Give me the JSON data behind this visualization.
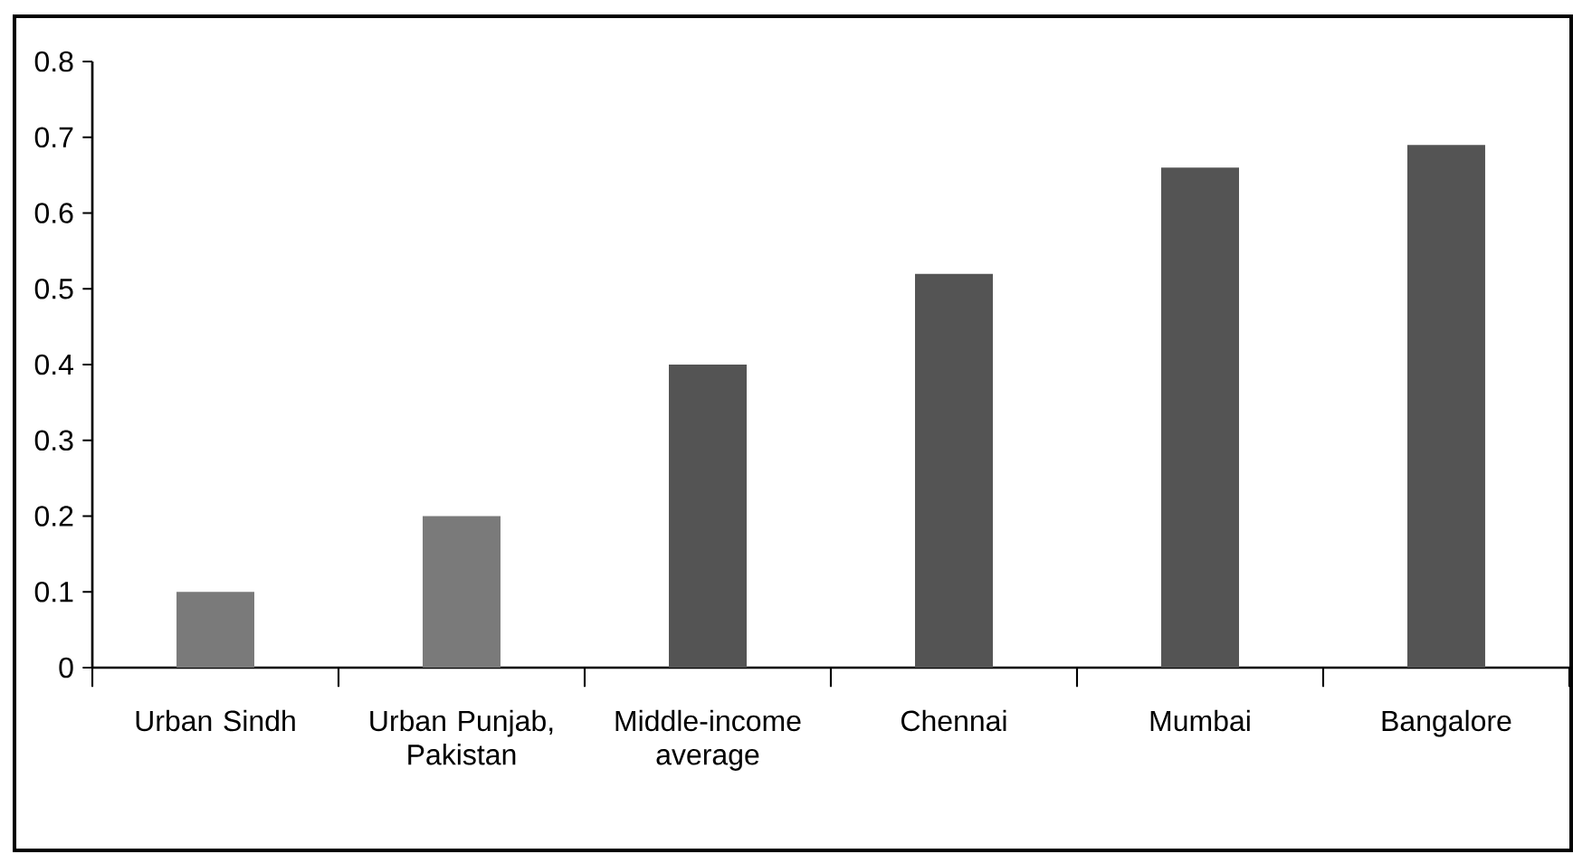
{
  "chart_data": {
    "type": "bar",
    "categories": [
      "Urban Sindh",
      "Urban Punjab, Pakistan",
      "Middle-income average",
      "Chennai",
      "Mumbai",
      "Bangalore"
    ],
    "values": [
      0.1,
      0.2,
      0.4,
      0.52,
      0.66,
      0.69
    ],
    "colors": [
      "#7a7a7a",
      "#7a7a7a",
      "#545454",
      "#545454",
      "#545454",
      "#545454"
    ],
    "ylim": [
      0,
      0.8
    ],
    "yticks": [
      0,
      0.1,
      0.2,
      0.3,
      0.4,
      0.5,
      0.6,
      0.7,
      0.8
    ],
    "grid": false
  }
}
